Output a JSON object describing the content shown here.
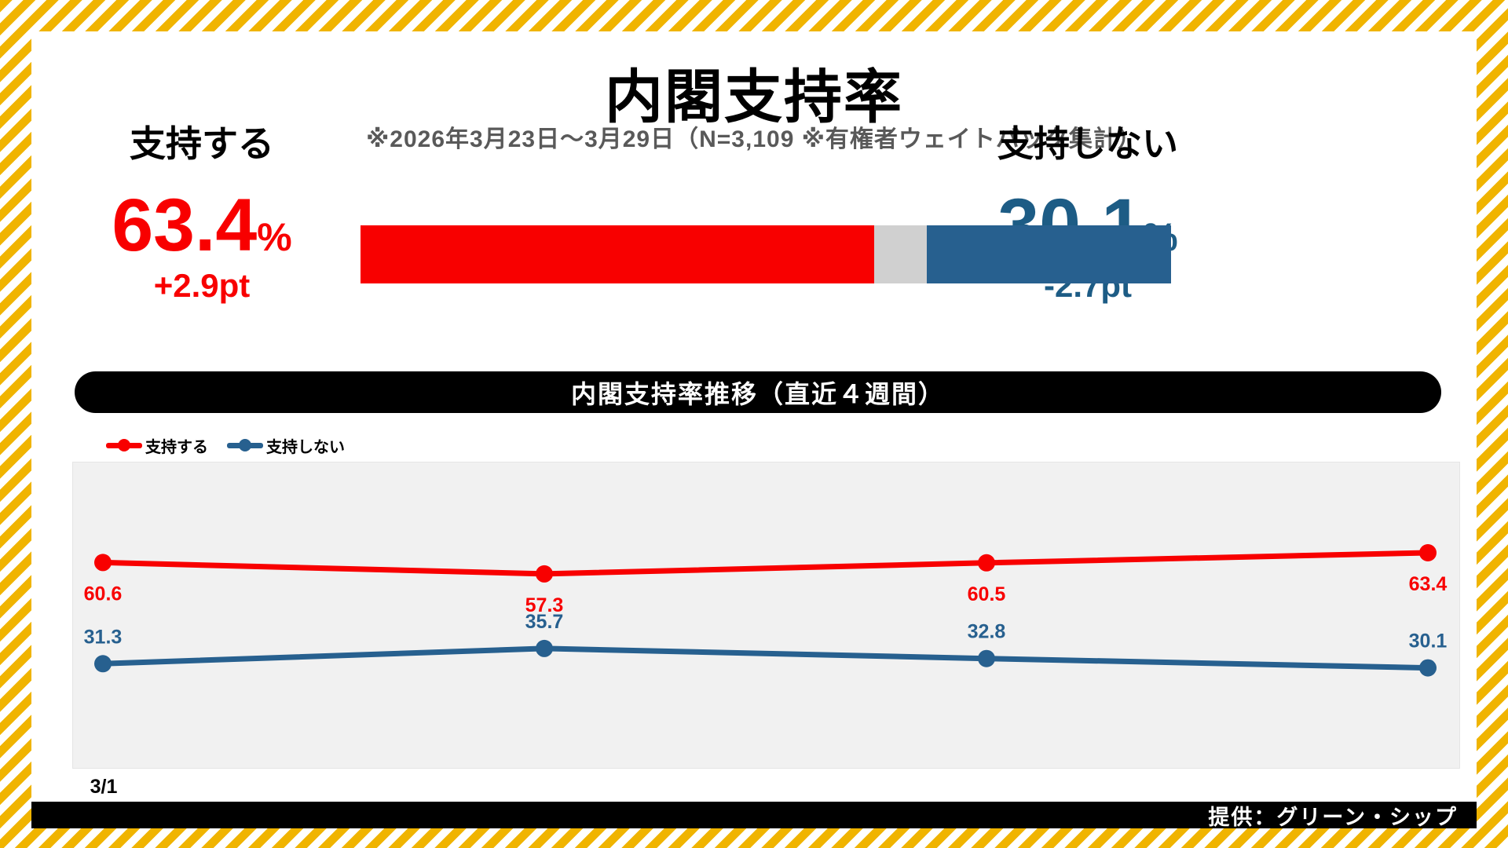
{
  "page": {
    "title": "内閣支持率",
    "subtitle": "※2026年3月23日～3月29日（N=3,109 ※有権者ウェイトバック集計）",
    "provider_credit": "提供：グリーン・シップ"
  },
  "summary": {
    "approve": {
      "label": "支持する",
      "value": "63.4",
      "unit": "%",
      "delta": "+2.9pt",
      "color": "#f80000"
    },
    "disapprove": {
      "label": "支持しない",
      "value": "30.1",
      "unit": "%",
      "delta": "-2.7pt",
      "color": "#1d5c85"
    }
  },
  "stacked_bar": {
    "segments": [
      {
        "name": "approve",
        "value": 63.4,
        "color": "#f80000"
      },
      {
        "name": "neutral-gray",
        "value": 6.5,
        "color": "#d0d0d0"
      },
      {
        "name": "disapprove",
        "value": 30.1,
        "color": "#27608f"
      }
    ]
  },
  "trend_banner": "内閣支持率推移（直近４週間）",
  "chart_data": {
    "type": "line",
    "title": "内閣支持率推移（直近４週間）",
    "x_tick_labels": [
      "3/1"
    ],
    "n_points": 4,
    "series": [
      {
        "name": "支持する",
        "color": "#f80000",
        "values": [
          60.6,
          57.3,
          60.5,
          63.4
        ],
        "label_position": "below"
      },
      {
        "name": "支持しない",
        "color": "#27608f",
        "values": [
          31.3,
          35.7,
          32.8,
          30.1
        ],
        "label_position": "above"
      }
    ],
    "ylim": [
      0,
      90
    ],
    "grid": false,
    "legend_position": "top-left",
    "plot_bg": "#f1f1f1"
  }
}
